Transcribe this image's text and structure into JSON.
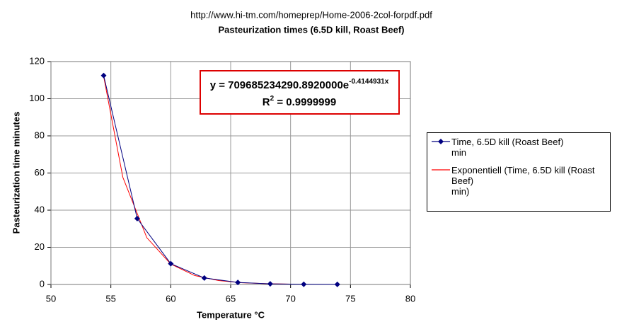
{
  "chart_data": {
    "type": "line",
    "source": "http://www.hi-tm.com/homeprep/Home-2006-2col-forpdf.pdf",
    "title": "Pasteurization times (6.5D kill, Roast Beef)",
    "x_label": "Temperature °C",
    "y_label": "Pasteurization time minutes",
    "xlim": [
      50,
      80
    ],
    "xticks": [
      50,
      55,
      60,
      65,
      70,
      75,
      80
    ],
    "ylim": [
      0,
      120
    ],
    "yticks": [
      0,
      20,
      40,
      60,
      80,
      100,
      120
    ],
    "grid": true,
    "series": [
      {
        "name": "Time, 6.5D kill (Roast Beef)\nmin",
        "color": "#000080",
        "marker": "diamond",
        "x": [
          54.4,
          57.2,
          60.0,
          62.8,
          65.6,
          68.3,
          71.1,
          73.9
        ],
        "values": [
          112.5,
          35.5,
          11.2,
          3.5,
          1.1,
          0.35,
          0.1,
          0.03
        ]
      },
      {
        "name": "Exponentiell (Time, 6.5D kill (Roast Beef)\nmin)",
        "color": "#ff0000",
        "marker": "none",
        "x": [
          54.4,
          56,
          58,
          60,
          62,
          64,
          66,
          68,
          70
        ],
        "values": [
          112,
          57.7,
          25.2,
          11.0,
          4.8,
          2.1,
          0.92,
          0.4,
          0.18
        ]
      }
    ],
    "equation": {
      "y_text": "y = 709685234290.8920000e",
      "exponent": "-0.4144931x",
      "r_text": "R",
      "r_power": "2",
      "r_value": " = 0.9999999"
    }
  }
}
